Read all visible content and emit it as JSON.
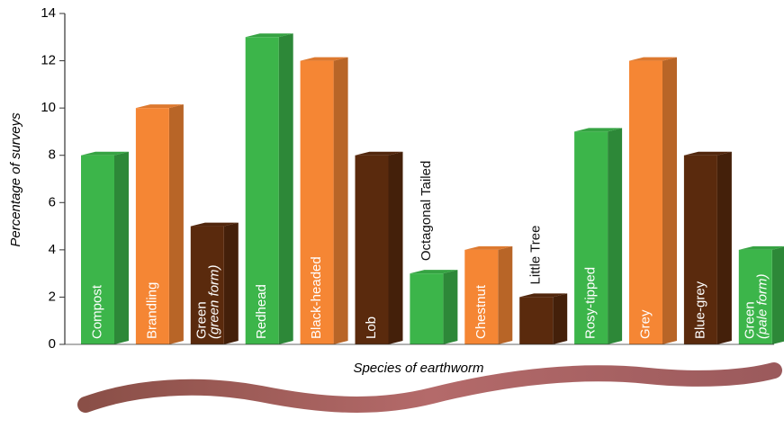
{
  "chart_data": {
    "type": "bar3d",
    "y_label": "Percentage of surveys",
    "x_label": "Species of earthworm",
    "categories": [
      "Compost",
      "Brandling",
      "Green",
      "Redhead",
      "Black-headed",
      "Lob",
      "Octagonal Tailed",
      "Chestnut",
      "Little Tree",
      "Rosy-tipped",
      "Grey",
      "Blue-grey",
      "Green"
    ],
    "category_notes": [
      null,
      null,
      "(green form)",
      null,
      null,
      null,
      null,
      null,
      null,
      null,
      null,
      null,
      "(pale form)"
    ],
    "values": [
      8,
      10,
      5,
      13,
      12,
      8,
      3,
      4,
      2,
      9,
      12,
      8,
      4
    ],
    "colors": [
      "#3cb54a",
      "#f58634",
      "#5a2a0d",
      "#3cb54a",
      "#f58634",
      "#5a2a0d",
      "#3cb54a",
      "#f58634",
      "#5a2a0d",
      "#3cb54a",
      "#f58634",
      "#5a2a0d",
      "#3cb54a"
    ],
    "ylim": [
      0,
      14
    ],
    "yticks": [
      0,
      2,
      4,
      6,
      8,
      10,
      12,
      14
    ]
  }
}
